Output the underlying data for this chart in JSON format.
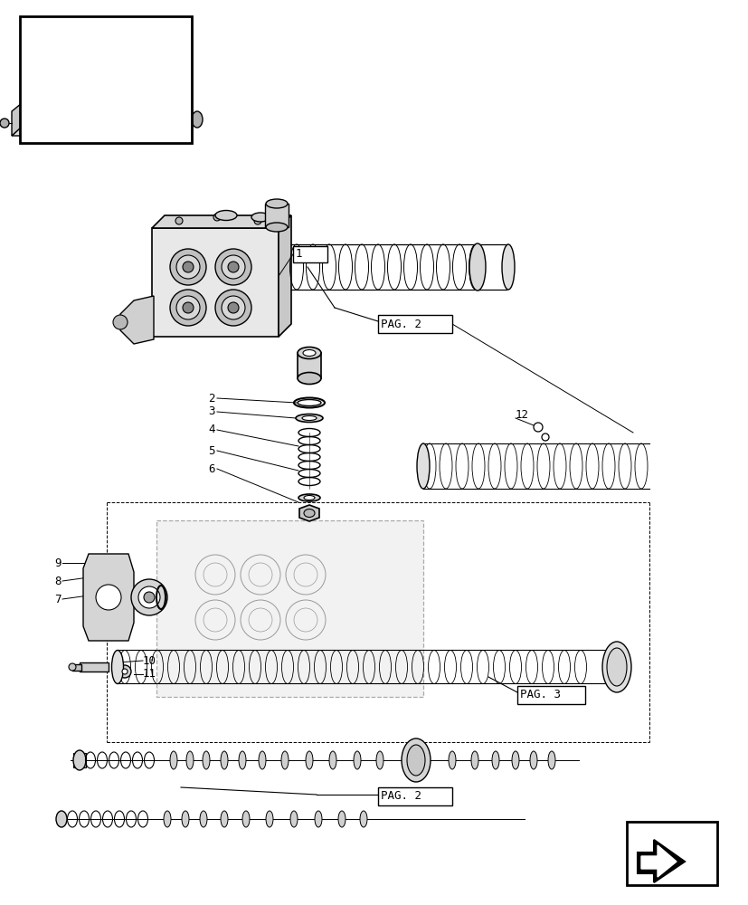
{
  "bg_color": "#ffffff",
  "line_color": "#000000",
  "light_gray": "#aaaaaa",
  "medium_gray": "#888888",
  "dark_gray": "#444444",
  "title": "",
  "fig_width": 8.28,
  "fig_height": 10.0,
  "dpi": 100,
  "part_labels": [
    "1",
    "2",
    "3",
    "4",
    "5",
    "6",
    "7",
    "8",
    "9",
    "10",
    "11",
    "12"
  ],
  "pag_labels": [
    "PAG. 2",
    "PAG. 3",
    "PAG. 2"
  ]
}
